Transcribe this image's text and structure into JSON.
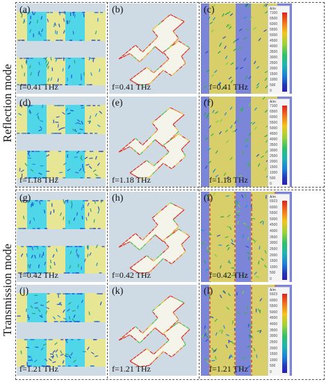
{
  "mode_labels": {
    "reflection": "Reflection mode",
    "transmission": "Transmission mode"
  },
  "colors": {
    "cell_cyan": "#4fd6e8",
    "metal_yellow": "#e6e695",
    "bg_gray": "#cfdbe4",
    "substrate_blue": "#7b86d8",
    "strip_yellow": "#d8ce6a"
  },
  "colorbar": {
    "unit": "A/m"
  },
  "colorbar_ticks_reflection": [
    "7100",
    "6500",
    "6000",
    "5500",
    "5000",
    "4500",
    "4000",
    "3500",
    "3000",
    "2500",
    "2000",
    "1500",
    "1000",
    "500",
    "0"
  ],
  "colorbar_ticks_transmission": [
    "6923",
    "6000",
    "5500",
    "5000",
    "4500",
    "4000",
    "3500",
    "3000",
    "2500",
    "2000",
    "1500",
    "1000",
    "500",
    "0"
  ],
  "rows": [
    {
      "panels": [
        {
          "label": "(a)",
          "freq": "f=0.41 THz"
        },
        {
          "label": "(b)",
          "freq": "f=0.41 THz"
        },
        {
          "label": "(c)",
          "freq": "f=0.41 THz"
        }
      ]
    },
    {
      "panels": [
        {
          "label": "(d)",
          "freq": "f=1.18 THz"
        },
        {
          "label": "(e)",
          "freq": "f=1.18 THz"
        },
        {
          "label": "(f)",
          "freq": "f=1.18 THz"
        }
      ]
    },
    {
      "panels": [
        {
          "label": "(g)",
          "freq": "f=0.42 THz"
        },
        {
          "label": "(h)",
          "freq": "f=0.42 THz"
        },
        {
          "label": "(i)",
          "freq": "f=0.42 THz"
        }
      ]
    },
    {
      "panels": [
        {
          "label": "(j)",
          "freq": "f=1.21 THz"
        },
        {
          "label": "(k)",
          "freq": "f=1.21 THz"
        },
        {
          "label": "(l)",
          "freq": "f=1.21 THz"
        }
      ]
    }
  ]
}
